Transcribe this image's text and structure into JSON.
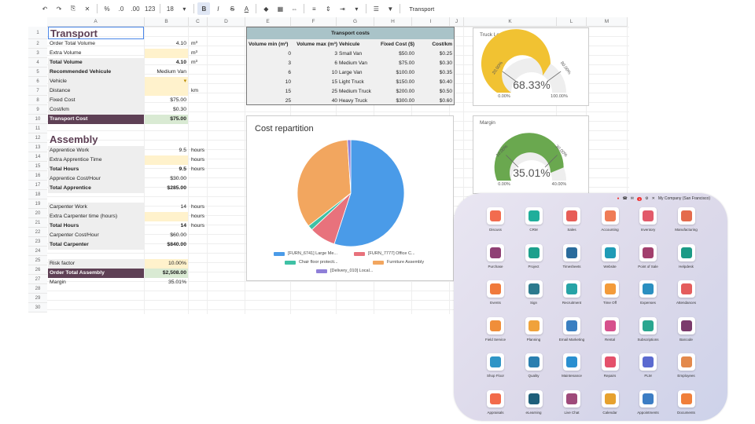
{
  "toolbar": {
    "undo": "↶",
    "redo": "↷",
    "paint": "⎘",
    "clear": "✕",
    "percent": "%",
    "dec_less": ".0",
    "dec_more": ".00",
    "number_format": "123",
    "font_size": "18",
    "size_arrow": "▾",
    "bold": "B",
    "italic": "I",
    "strike": "S",
    "text_color": "A",
    "fill": "◆",
    "borders": "▦",
    "merge": "⇔",
    "align": "≡",
    "valign": "⇕",
    "wrap": "⇥",
    "more": "▾",
    "format_menu": "☰",
    "filter": "▼",
    "formula_text": "Transport"
  },
  "columns": [
    "A",
    "B",
    "C",
    "D",
    "E",
    "F",
    "G",
    "H",
    "I",
    "J",
    "K",
    "L",
    "M"
  ],
  "rows": [
    "1",
    "2",
    "3",
    "4",
    "5",
    "6",
    "7",
    "8",
    "9",
    "10",
    "11",
    "12",
    "13",
    "14",
    "15",
    "16",
    "17",
    "18",
    "19",
    "20",
    "21",
    "22",
    "23",
    "24",
    "25",
    "26",
    "27",
    "28",
    "29",
    "30"
  ],
  "transport": {
    "title": "Transport",
    "order_total_volume": {
      "label": "Order Total Volume",
      "value": "4.10",
      "unit": "m³"
    },
    "extra_volume": {
      "label": "Extra Volume",
      "value": "",
      "unit": "m³"
    },
    "total_volume": {
      "label": "Total Volume",
      "value": "4.10",
      "unit": "m³"
    },
    "recommended_vehicle": {
      "label": "Recommended Vehicule",
      "value": "Medium Van"
    },
    "vehicle": {
      "label": "Vehicle",
      "value": "",
      "dropdown": "▾"
    },
    "distance": {
      "label": "Distance",
      "value": "",
      "unit": "km"
    },
    "fixed_cost": {
      "label": "Fixed Cost",
      "value": "$75.00"
    },
    "cost_km": {
      "label": "Cost/km",
      "value": "$0.30"
    },
    "transport_cost": {
      "label": "Transport Cost",
      "value": "$75.00"
    }
  },
  "assembly": {
    "title": "Assembly",
    "apprentice_work": {
      "label": "Apprentice Work",
      "value": "9.5",
      "unit": "hours"
    },
    "extra_apprentice_time": {
      "label": "Extra Apprentice Time",
      "value": "",
      "unit": "hours"
    },
    "total_hours_a": {
      "label": "Total Hours",
      "value": "9.5",
      "unit": "hours"
    },
    "apprentice_cost_hour": {
      "label": "Apprentice Cost/Hour",
      "value": "$30.00"
    },
    "total_apprentice": {
      "label": "Total Apprentice",
      "value": "$285.00"
    },
    "carpenter_work": {
      "label": "Carpenter Work",
      "value": "14",
      "unit": "hours"
    },
    "extra_carpenter": {
      "label": "Extra Carpenter time (hours)",
      "value": "",
      "unit": "hours"
    },
    "total_hours_c": {
      "label": "Total Hours",
      "value": "14",
      "unit": "hours"
    },
    "carpenter_cost_hour": {
      "label": "Carpenter Cost/Hour",
      "value": "$60.00"
    },
    "total_carpenter": {
      "label": "Total Carpenter",
      "value": "$840.00"
    },
    "risk_factor": {
      "label": "Risk factor",
      "value": "10.00%"
    },
    "order_total_assembly": {
      "label": "Order Total Assembly",
      "value": "$2,508.00"
    },
    "margin": {
      "label": "Margin",
      "value": "35.01%"
    }
  },
  "transport_costs": {
    "title": "Transport costs",
    "headers": [
      "Volume min (m³)",
      "Volume max (m³)",
      "Vehicule",
      "Fixed Cost ($)",
      "Cost/km"
    ],
    "rows": [
      [
        "0",
        "3",
        "Small Van",
        "$50.00",
        "$0.25"
      ],
      [
        "3",
        "6",
        "Medium Van",
        "$75.00",
        "$0.30"
      ],
      [
        "6",
        "10",
        "Large Van",
        "$100.00",
        "$0.35"
      ],
      [
        "10",
        "15",
        "Light Truck",
        "$150.00",
        "$0.40"
      ],
      [
        "15",
        "25",
        "Medium Truck",
        "$200.00",
        "$0.50"
      ],
      [
        "25",
        "40",
        "Heavy Truck",
        "$300.00",
        "$0.60"
      ]
    ]
  },
  "truck_load": {
    "title": "Truck Load",
    "value_text": "68.33%",
    "value": 68.33,
    "min": "0.00%",
    "max": "100.00%",
    "low_mark": "20.00%",
    "high_mark": "80.00%",
    "color": "#f1c232"
  },
  "margin_gauge": {
    "title": "Margin",
    "value_text": "35.01%",
    "value": 35.01,
    "min": "0.00%",
    "max": "40.00%",
    "low_mark": "10.00%",
    "high_mark": "30.00%",
    "color": "#6aa84f"
  },
  "chart_data": {
    "type": "pie",
    "title": "Cost repartition",
    "series": [
      {
        "name": "[FURN_6741] Large Me...",
        "value": 55,
        "color": "#4a9be8"
      },
      {
        "name": "[FURN_7777] Office C...",
        "value": 8,
        "color": "#e8727c"
      },
      {
        "name": "Chair floor protecti...",
        "value": 1.5,
        "color": "#3fc1a5"
      },
      {
        "name": "Furniture Assembly",
        "value": 34.5,
        "color": "#f2a65f"
      },
      {
        "name": "[Delivery_010] Local...",
        "value": 1,
        "color": "#8f7fd8"
      }
    ]
  },
  "odoo": {
    "company": "My Company (San Francisco)",
    "status_icons": [
      "●",
      "☎",
      "✉",
      "⚙",
      "✕"
    ],
    "badge_count": "1",
    "apps": [
      {
        "name": "Discuss",
        "color": "#f26c4f"
      },
      {
        "name": "CRM",
        "color": "#1fae9b"
      },
      {
        "name": "Sales",
        "color": "#e75d57"
      },
      {
        "name": "Accounting",
        "color": "#ef7b55"
      },
      {
        "name": "Inventory",
        "color": "#e25a6a"
      },
      {
        "name": "Manufacturing",
        "color": "#e46b4d"
      },
      {
        "name": "Purchase",
        "color": "#8f3f74"
      },
      {
        "name": "Project",
        "color": "#1da08d"
      },
      {
        "name": "Timesheets",
        "color": "#2a6b9c"
      },
      {
        "name": "Website",
        "color": "#1f9bb6"
      },
      {
        "name": "Point of Sale",
        "color": "#a23f6d"
      },
      {
        "name": "Helpdesk",
        "color": "#1b9a86"
      },
      {
        "name": "Events",
        "color": "#f07a3c"
      },
      {
        "name": "Sign",
        "color": "#2c7a8e"
      },
      {
        "name": "Recruitment",
        "color": "#26a3a6"
      },
      {
        "name": "Time Off",
        "color": "#f39b3a"
      },
      {
        "name": "Expenses",
        "color": "#2a8fc0"
      },
      {
        "name": "Attendances",
        "color": "#e45c5c"
      },
      {
        "name": "Field Service",
        "color": "#f08e3a"
      },
      {
        "name": "Planning",
        "color": "#f0a23b"
      },
      {
        "name": "Email Marketing",
        "color": "#3a7fc1"
      },
      {
        "name": "Rental",
        "color": "#d6508c"
      },
      {
        "name": "Subscriptions",
        "color": "#2aa68f"
      },
      {
        "name": "Barcode",
        "color": "#7b3a6c"
      },
      {
        "name": "Shop Floor",
        "color": "#2f95c6"
      },
      {
        "name": "Quality",
        "color": "#2a7fb0"
      },
      {
        "name": "Maintenance",
        "color": "#2a8fd0"
      },
      {
        "name": "Repairs",
        "color": "#e4506b"
      },
      {
        "name": "PLM",
        "color": "#5b6ad0"
      },
      {
        "name": "Employees",
        "color": "#e3894c"
      },
      {
        "name": "Appraisals",
        "color": "#f26a4a"
      },
      {
        "name": "eLearning",
        "color": "#1e5f7a"
      },
      {
        "name": "Live Chat",
        "color": "#9e4a7a"
      },
      {
        "name": "Calendar",
        "color": "#e6a12e"
      },
      {
        "name": "Appointments",
        "color": "#3c7dc4"
      },
      {
        "name": "Documents",
        "color": "#f07f3a"
      }
    ]
  }
}
